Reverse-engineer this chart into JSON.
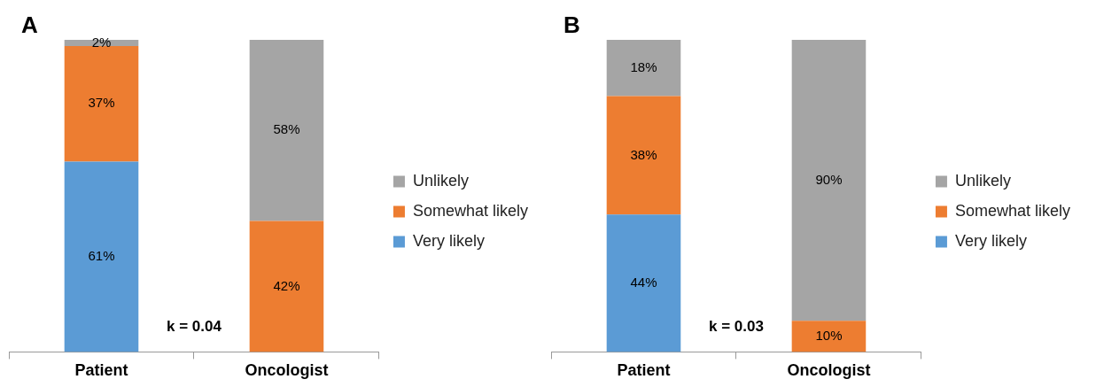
{
  "chart_data": [
    {
      "type": "bar",
      "title": "A",
      "categories": [
        "Patient",
        "Oncologist"
      ],
      "stacked": true,
      "legend": "right",
      "series": [
        {
          "name": "Very likely",
          "color": "#5b9bd5",
          "values": [
            61,
            0
          ],
          "value_labels": [
            "61%",
            null
          ]
        },
        {
          "name": "Somewhat likely",
          "color": "#ed7d31",
          "values": [
            37,
            42
          ],
          "value_labels": [
            "37%",
            "42%"
          ]
        },
        {
          "name": "Unlikely",
          "color": "#a5a5a5",
          "values": [
            2,
            58
          ],
          "value_labels": [
            "2%",
            "58%"
          ]
        }
      ],
      "annotations": [
        "k = 0.04"
      ]
    },
    {
      "type": "bar",
      "title": "B",
      "categories": [
        "Patient",
        "Oncologist"
      ],
      "stacked": true,
      "legend": "right",
      "series": [
        {
          "name": "Very likely",
          "color": "#5b9bd5",
          "values": [
            44,
            0
          ],
          "value_labels": [
            "44%",
            null
          ]
        },
        {
          "name": "Somewhat likely",
          "color": "#ed7d31",
          "values": [
            38,
            10
          ],
          "value_labels": [
            "38%",
            "10%"
          ]
        },
        {
          "name": "Unlikely",
          "color": "#a5a5a5",
          "values": [
            18,
            90
          ],
          "value_labels": [
            "18%",
            "90%"
          ]
        }
      ],
      "annotations": [
        "k = 0.03"
      ]
    }
  ]
}
